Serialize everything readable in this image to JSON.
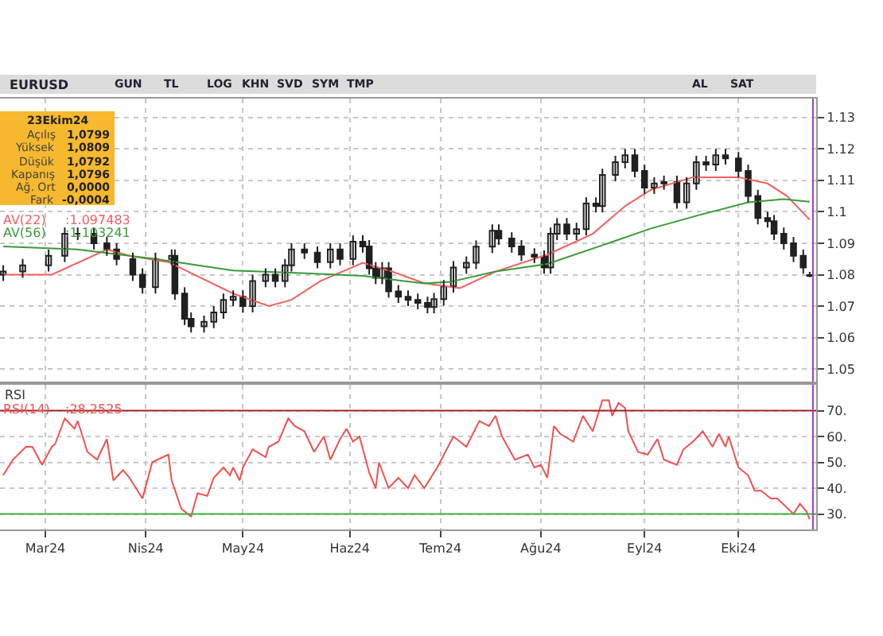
{
  "chart_data": [
    {
      "type": "candlestick",
      "title": "EURUSD",
      "x": [
        "2024-02-17",
        "2024-02-23",
        "2024-03-02",
        "2024-03-07",
        "2024-03-11",
        "2024-03-16",
        "2024-03-20",
        "2024-03-23",
        "2024-03-28",
        "2024-03-31",
        "2024-04-04",
        "2024-04-09",
        "2024-04-10",
        "2024-04-13",
        "2024-04-15",
        "2024-04-19",
        "2024-04-22",
        "2024-04-25",
        "2024-04-28",
        "2024-05-01",
        "2024-05-04",
        "2024-05-08",
        "2024-05-11",
        "2024-05-14",
        "2024-05-16",
        "2024-05-20",
        "2024-05-24",
        "2024-05-28",
        "2024-05-31",
        "2024-06-04",
        "2024-06-07",
        "2024-06-09",
        "2024-06-11",
        "2024-06-13",
        "2024-06-15",
        "2024-06-18",
        "2024-06-21",
        "2024-06-24",
        "2024-06-27",
        "2024-06-29",
        "2024-07-02",
        "2024-07-05",
        "2024-07-09",
        "2024-07-12",
        "2024-07-17",
        "2024-07-19",
        "2024-07-23",
        "2024-07-26",
        "2024-07-30",
        "2024-08-02",
        "2024-08-04",
        "2024-08-06",
        "2024-08-09",
        "2024-08-12",
        "2024-08-15",
        "2024-08-18",
        "2024-08-20",
        "2024-08-24",
        "2024-08-27",
        "2024-08-30",
        "2024-09-02",
        "2024-09-05",
        "2024-09-08",
        "2024-09-12",
        "2024-09-15",
        "2024-09-18",
        "2024-09-21",
        "2024-09-24",
        "2024-09-27",
        "2024-10-01",
        "2024-10-04",
        "2024-10-07",
        "2024-10-10",
        "2024-10-12",
        "2024-10-15",
        "2024-10-18",
        "2024-10-21",
        "2024-10-23"
      ],
      "ohlc": [
        [
          1.08,
          1.083,
          1.078,
          1.081
        ],
        [
          1.081,
          1.085,
          1.079,
          1.083
        ],
        [
          1.083,
          1.088,
          1.081,
          1.086
        ],
        [
          1.086,
          1.095,
          1.084,
          1.093
        ],
        [
          1.093,
          1.095,
          1.091,
          1.093
        ],
        [
          1.093,
          1.095,
          1.088,
          1.09
        ],
        [
          1.09,
          1.092,
          1.086,
          1.088
        ],
        [
          1.088,
          1.09,
          1.083,
          1.085
        ],
        [
          1.085,
          1.087,
          1.078,
          1.08
        ],
        [
          1.08,
          1.082,
          1.074,
          1.076
        ],
        [
          1.076,
          1.087,
          1.074,
          1.085
        ],
        [
          1.085,
          1.088,
          1.083,
          1.086
        ],
        [
          1.086,
          1.088,
          1.072,
          1.074
        ],
        [
          1.074,
          1.076,
          1.064,
          1.066
        ],
        [
          1.066,
          1.068,
          1.0616,
          1.0636
        ],
        [
          1.0636,
          1.067,
          1.0616,
          1.065
        ],
        [
          1.065,
          1.07,
          1.063,
          1.068
        ],
        [
          1.068,
          1.074,
          1.066,
          1.072
        ],
        [
          1.072,
          1.075,
          1.07,
          1.073
        ],
        [
          1.073,
          1.075,
          1.068,
          1.07
        ],
        [
          1.07,
          1.08,
          1.068,
          1.078
        ],
        [
          1.078,
          1.082,
          1.076,
          1.08
        ],
        [
          1.08,
          1.082,
          1.076,
          1.078
        ],
        [
          1.078,
          1.085,
          1.076,
          1.083
        ],
        [
          1.083,
          1.09,
          1.081,
          1.088
        ],
        [
          1.088,
          1.09,
          1.085,
          1.087
        ],
        [
          1.087,
          1.089,
          1.082,
          1.084
        ],
        [
          1.084,
          1.09,
          1.082,
          1.088
        ],
        [
          1.088,
          1.09,
          1.083,
          1.085
        ],
        [
          1.085,
          1.0925,
          1.083,
          1.0905
        ],
        [
          1.0905,
          1.0925,
          1.087,
          1.089
        ],
        [
          1.089,
          1.091,
          1.08,
          1.082
        ],
        [
          1.082,
          1.084,
          1.077,
          1.079
        ],
        [
          1.079,
          1.084,
          1.077,
          1.082
        ],
        [
          1.082,
          1.084,
          1.0727,
          1.0747
        ],
        [
          1.0747,
          1.0767,
          1.071,
          1.073
        ],
        [
          1.073,
          1.075,
          1.07,
          1.072
        ],
        [
          1.072,
          1.074,
          1.069,
          1.071
        ],
        [
          1.071,
          1.073,
          1.0677,
          1.0697
        ],
        [
          1.0697,
          1.0742,
          1.0677,
          1.0722
        ],
        [
          1.0722,
          1.0783,
          1.0702,
          1.0763
        ],
        [
          1.0763,
          1.0843,
          1.0743,
          1.0823
        ],
        [
          1.0823,
          1.0858,
          1.0803,
          1.0838
        ],
        [
          1.0838,
          1.0909,
          1.0818,
          1.0889
        ],
        [
          1.0889,
          1.096,
          1.0869,
          1.094
        ],
        [
          1.094,
          1.096,
          1.0895,
          1.0915
        ],
        [
          1.0915,
          1.0935,
          1.087,
          1.089
        ],
        [
          1.089,
          1.091,
          1.0844,
          1.0864
        ],
        [
          1.0864,
          1.0884,
          1.0837,
          1.0857
        ],
        [
          1.0857,
          1.0877,
          1.0803,
          1.0823
        ],
        [
          1.0823,
          1.095,
          1.0803,
          1.093
        ],
        [
          1.093,
          1.098,
          1.091,
          1.096
        ],
        [
          1.096,
          1.098,
          1.091,
          1.093
        ],
        [
          1.093,
          1.0965,
          1.091,
          1.0945
        ],
        [
          1.0945,
          1.1046,
          1.0925,
          1.1026
        ],
        [
          1.1026,
          1.1046,
          1.0998,
          1.1018
        ],
        [
          1.1018,
          1.1137,
          1.0998,
          1.1117
        ],
        [
          1.1117,
          1.1178,
          1.1097,
          1.1158
        ],
        [
          1.1158,
          1.12,
          1.1138,
          1.118
        ],
        [
          1.118,
          1.12,
          1.111,
          1.113
        ],
        [
          1.113,
          1.115,
          1.1057,
          1.1077
        ],
        [
          1.1077,
          1.111,
          1.1057,
          1.109
        ],
        [
          1.109,
          1.1115,
          1.107,
          1.1095
        ],
        [
          1.1095,
          1.1115,
          1.101,
          1.103
        ],
        [
          1.103,
          1.111,
          1.101,
          1.109
        ],
        [
          1.109,
          1.1178,
          1.107,
          1.1158
        ],
        [
          1.1158,
          1.1178,
          1.113,
          1.115
        ],
        [
          1.115,
          1.12,
          1.113,
          1.118
        ],
        [
          1.118,
          1.12,
          1.115,
          1.117
        ],
        [
          1.117,
          1.119,
          1.111,
          1.113
        ],
        [
          1.113,
          1.115,
          1.103,
          1.105
        ],
        [
          1.105,
          1.107,
          1.096,
          1.098
        ],
        [
          1.098,
          1.1,
          1.095,
          1.097
        ],
        [
          1.097,
          1.099,
          1.091,
          1.093
        ],
        [
          1.093,
          1.095,
          1.088,
          1.09
        ],
        [
          1.09,
          1.092,
          1.084,
          1.086
        ],
        [
          1.086,
          1.088,
          1.0803,
          1.0823
        ],
        [
          1.0799,
          1.0809,
          1.0792,
          1.0796
        ]
      ],
      "color": "#202020",
      "series": [
        {
          "name": "AV(22)",
          "type": "line",
          "color": "#f06060",
          "x": [
            "2024-02-17",
            "2024-03-03",
            "2024-03-20",
            "2024-03-27",
            "2024-04-08",
            "2024-04-20",
            "2024-04-28",
            "2024-05-09",
            "2024-05-16",
            "2024-05-25",
            "2024-06-07",
            "2024-06-16",
            "2024-06-26",
            "2024-07-07",
            "2024-07-18",
            "2024-08-03",
            "2024-08-17",
            "2024-08-27",
            "2024-09-04",
            "2024-09-17",
            "2024-10-01",
            "2024-10-10",
            "2024-10-16",
            "2024-10-23"
          ],
          "values": [
            1.08,
            1.08,
            1.088,
            1.086,
            1.084,
            1.078,
            1.074,
            1.07,
            1.072,
            1.078,
            1.0838,
            1.081,
            1.0773,
            1.0757,
            1.081,
            1.0864,
            1.093,
            1.1018,
            1.107,
            1.111,
            1.111,
            1.109,
            1.105,
            1.0975
          ]
        },
        {
          "name": "AV(56)",
          "type": "line",
          "color": "#3a9a3a",
          "x": [
            "2024-02-17",
            "2024-03-11",
            "2024-04-04",
            "2024-04-28",
            "2024-05-22",
            "2024-06-07",
            "2024-06-26",
            "2024-07-04",
            "2024-07-18",
            "2024-08-03",
            "2024-08-19",
            "2024-09-04",
            "2024-09-19",
            "2024-10-04",
            "2024-10-15",
            "2024-10-23"
          ],
          "values": [
            1.089,
            1.088,
            1.085,
            1.0813,
            1.0804,
            1.0796,
            1.0772,
            1.0777,
            1.081,
            1.0834,
            1.089,
            1.0947,
            1.099,
            1.103,
            1.104,
            1.1032
          ]
        }
      ],
      "annotations": [
        "23Ekim24",
        "Açılış",
        "1,0799",
        "Yüksek",
        "1,0809",
        "Düşük",
        "1,0792",
        "Kapanış",
        "1,0796",
        "Ağ. Ort",
        "0,0000",
        "Fark",
        "-0,0004",
        ":1.097483",
        ":1.103241",
        "GUN",
        "TL",
        "LOG",
        "KHN",
        "SVD",
        "SYM",
        "TMP",
        "AL",
        "SAT"
      ],
      "xlim": [
        "2024-02-16",
        "2024-10-25"
      ],
      "ylim": [
        1.046,
        1.136
      ],
      "yticks": [
        1.05,
        1.06,
        1.07,
        1.08,
        1.09,
        1.1,
        1.11,
        1.12,
        1.13
      ],
      "ref_lines": [
        {
          "axis": "x",
          "value": "2024-10-24",
          "color": "#a040c0"
        }
      ],
      "tick_labels": "y",
      "grid": true,
      "legend": "top left"
    },
    {
      "type": "line",
      "title": "RSI",
      "x": [
        "2024-02-17",
        "2024-02-20",
        "2024-02-24",
        "2024-02-26",
        "2024-02-29",
        "2024-03-03",
        "2024-03-04",
        "2024-03-07",
        "2024-03-10",
        "2024-03-11",
        "2024-03-14",
        "2024-03-17",
        "2024-03-20",
        "2024-03-22",
        "2024-03-25",
        "2024-03-27",
        "2024-03-31",
        "2024-04-03",
        "2024-04-08",
        "2024-04-09",
        "2024-04-12",
        "2024-04-15",
        "2024-04-17",
        "2024-04-20",
        "2024-04-22",
        "2024-04-25",
        "2024-04-27",
        "2024-04-28",
        "2024-04-30",
        "2024-05-01",
        "2024-05-04",
        "2024-05-08",
        "2024-05-09",
        "2024-05-12",
        "2024-05-15",
        "2024-05-17",
        "2024-05-20",
        "2024-05-23",
        "2024-05-26",
        "2024-05-28",
        "2024-05-31",
        "2024-06-02",
        "2024-06-04",
        "2024-06-06",
        "2024-06-09",
        "2024-06-11",
        "2024-06-12",
        "2024-06-15",
        "2024-06-18",
        "2024-06-21",
        "2024-06-23",
        "2024-06-26",
        "2024-06-29",
        "2024-06-30",
        "2024-07-05",
        "2024-07-09",
        "2024-07-13",
        "2024-07-16",
        "2024-07-18",
        "2024-07-20",
        "2024-07-24",
        "2024-07-28",
        "2024-07-30",
        "2024-08-01",
        "2024-08-03",
        "2024-08-05",
        "2024-08-07",
        "2024-08-11",
        "2024-08-14",
        "2024-08-17",
        "2024-08-20",
        "2024-08-22",
        "2024-08-23",
        "2024-08-25",
        "2024-08-27",
        "2024-08-28",
        "2024-08-31",
        "2024-09-03",
        "2024-09-06",
        "2024-09-08",
        "2024-09-12",
        "2024-09-14",
        "2024-09-17",
        "2024-09-20",
        "2024-09-23",
        "2024-09-25",
        "2024-09-27",
        "2024-09-28",
        "2024-10-01",
        "2024-10-04",
        "2024-10-06",
        "2024-10-08",
        "2024-10-11",
        "2024-10-13",
        "2024-10-18",
        "2024-10-20",
        "2024-10-22",
        "2024-10-23"
      ],
      "series": [
        {
          "name": "RSI(14)",
          "color": "#f05050",
          "values": [
            45,
            51,
            56,
            56,
            49,
            56,
            57,
            67,
            63,
            66,
            54,
            51,
            59,
            43,
            47,
            44,
            36,
            50,
            53,
            43,
            32,
            29,
            38,
            37,
            44,
            48,
            45,
            48,
            43,
            48,
            55,
            52,
            56,
            58,
            67,
            64,
            62,
            54,
            60,
            51,
            59,
            63,
            58,
            60,
            46,
            40,
            50,
            40,
            44,
            40,
            45,
            40,
            46,
            48,
            60,
            56,
            66,
            64,
            68,
            60,
            51,
            53,
            48,
            49,
            44,
            64,
            61,
            58,
            68,
            62,
            74,
            74,
            68,
            73,
            71,
            62,
            54,
            53,
            59,
            51,
            49,
            55,
            58,
            62,
            56,
            61,
            56,
            60,
            48,
            45,
            39,
            39,
            36,
            36,
            30,
            34,
            31,
            28
          ]
        }
      ],
      "annotations": [
        ":28.2525"
      ],
      "xlim": [
        "2024-02-16",
        "2024-10-25"
      ],
      "xticks": [
        {
          "value": "2024-03-01",
          "label": "Mar24"
        },
        {
          "value": "2024-04-01",
          "label": "Nis24"
        },
        {
          "value": "2024-05-01",
          "label": "May24"
        },
        {
          "value": "2024-06-03",
          "label": "Haz24"
        },
        {
          "value": "2024-07-01",
          "label": "Tem24"
        },
        {
          "value": "2024-08-01",
          "label": "Ağu24"
        },
        {
          "value": "2024-09-02",
          "label": "Eyl24"
        },
        {
          "value": "2024-10-01",
          "label": "Eki24"
        }
      ],
      "ylim": [
        24,
        80
      ],
      "yticks": [
        {
          "value": 30,
          "label": "30."
        },
        {
          "value": 40,
          "label": "40."
        },
        {
          "value": 50,
          "label": "50."
        },
        {
          "value": 60,
          "label": "60."
        },
        {
          "value": 70,
          "label": "70."
        }
      ],
      "ref_lines": [
        {
          "axis": "y",
          "value": 70,
          "color": "#a02828"
        },
        {
          "axis": "y",
          "value": 30,
          "color": "#40b040"
        },
        {
          "axis": "x",
          "value": "2024-10-24",
          "color": "#a040c0"
        }
      ],
      "grid": true,
      "legend": "top left"
    }
  ]
}
